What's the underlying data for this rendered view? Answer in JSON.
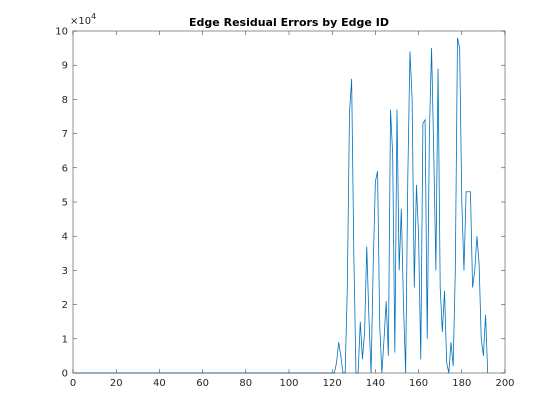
{
  "chart_data": {
    "type": "line",
    "title": "Edge Residual Errors by Edge ID",
    "y_multiplier": {
      "base": "×10",
      "exponent": "4"
    },
    "x": [
      1,
      120,
      121,
      122,
      123,
      124,
      125,
      126,
      127,
      128,
      129,
      130,
      131,
      132,
      133,
      134,
      135,
      136,
      137,
      138,
      139,
      140,
      141,
      142,
      143,
      144,
      145,
      146,
      147,
      148,
      149,
      150,
      151,
      152,
      153,
      154,
      155,
      156,
      157,
      158,
      159,
      160,
      161,
      162,
      163,
      164,
      165,
      166,
      167,
      168,
      169,
      170,
      171,
      172,
      173,
      174,
      175,
      176,
      177,
      178,
      179,
      180,
      181,
      182,
      183,
      184,
      185,
      186,
      187,
      188,
      189,
      190,
      191,
      192
    ],
    "series": [
      {
        "color": "#0072bd",
        "values": [
          0,
          0,
          0,
          0.3,
          0.9,
          0.5,
          0,
          0,
          2.5,
          7.6,
          8.6,
          3.5,
          0,
          0,
          1.5,
          0.4,
          1.2,
          3.7,
          1.6,
          0,
          3.2,
          5.6,
          5.9,
          1.4,
          0,
          1.0,
          2.1,
          0.5,
          7.7,
          6.4,
          0.6,
          7.7,
          3.0,
          4.8,
          2.0,
          0,
          5.7,
          9.4,
          8.0,
          2.5,
          5.5,
          4.0,
          0.4,
          7.3,
          7.4,
          1.0,
          7.0,
          9.5,
          6.5,
          3.0,
          8.9,
          2.5,
          1.2,
          2.4,
          0.3,
          0,
          0.9,
          0.2,
          3.0,
          9.8,
          9.5,
          5.0,
          3.0,
          5.3,
          5.3,
          5.3,
          2.5,
          3.0,
          4.0,
          3.2,
          1.0,
          0.5,
          1.7,
          0
        ]
      }
    ],
    "xlim": [
      0,
      200
    ],
    "xticks": [
      0,
      20,
      40,
      60,
      80,
      100,
      120,
      140,
      160,
      180,
      200
    ],
    "ylim": [
      0,
      10
    ],
    "yticks": [
      0,
      1,
      2,
      3,
      4,
      5,
      6,
      7,
      8,
      9,
      10
    ],
    "grid": false
  }
}
